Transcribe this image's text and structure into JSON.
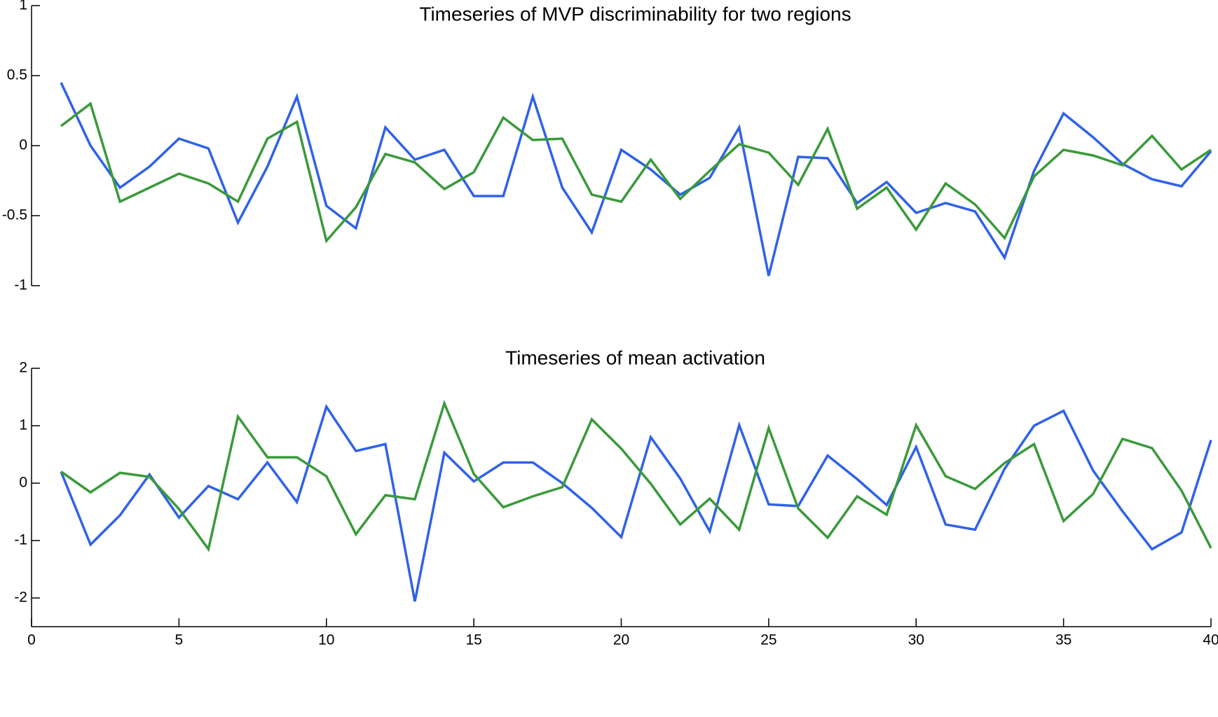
{
  "chart_data": [
    {
      "type": "line",
      "title": "Timeseries of MVP discriminability for two regions",
      "x": [
        1,
        2,
        3,
        4,
        5,
        6,
        7,
        8,
        9,
        10,
        11,
        12,
        13,
        14,
        15,
        16,
        17,
        18,
        19,
        20,
        21,
        22,
        23,
        24,
        25,
        26,
        27,
        28,
        29,
        30,
        31,
        32,
        33,
        34,
        35,
        36,
        37,
        38,
        39,
        40
      ],
      "series": [
        {
          "color": "#2f62e8",
          "values": [
            0.45,
            0.0,
            -0.3,
            -0.15,
            0.05,
            -0.02,
            -0.55,
            -0.15,
            0.35,
            -0.43,
            -0.59,
            0.13,
            -0.1,
            -0.03,
            -0.36,
            -0.36,
            0.35,
            -0.3,
            -0.62,
            -0.03,
            -0.17,
            -0.35,
            -0.23,
            0.13,
            -0.93,
            -0.08,
            -0.09,
            -0.41,
            -0.26,
            -0.48,
            -0.41,
            -0.47,
            -0.8,
            -0.18,
            0.23,
            0.06,
            -0.13,
            -0.24,
            -0.29,
            -0.04
          ]
        },
        {
          "color": "#3a9a3a",
          "values": [
            0.14,
            0.3,
            -0.4,
            -0.3,
            -0.2,
            -0.27,
            -0.4,
            0.05,
            0.17,
            -0.68,
            -0.44,
            -0.06,
            -0.12,
            -0.31,
            -0.19,
            0.2,
            0.04,
            0.05,
            -0.35,
            -0.4,
            -0.1,
            -0.38,
            -0.18,
            0.01,
            -0.05,
            -0.28,
            0.12,
            -0.45,
            -0.3,
            -0.6,
            -0.27,
            -0.42,
            -0.66,
            -0.22,
            -0.03,
            -0.07,
            -0.14,
            0.07,
            -0.17,
            -0.03
          ]
        }
      ],
      "xlim": [
        0,
        40
      ],
      "ylim": [
        -1,
        1
      ],
      "yticks": [
        -1,
        -0.5,
        0,
        0.5,
        1
      ]
    },
    {
      "type": "line",
      "title": "Timeseries of mean activation",
      "x": [
        1,
        2,
        3,
        4,
        5,
        6,
        7,
        8,
        9,
        10,
        11,
        12,
        13,
        14,
        15,
        16,
        17,
        18,
        19,
        20,
        21,
        22,
        23,
        24,
        25,
        26,
        27,
        28,
        29,
        30,
        31,
        32,
        33,
        34,
        35,
        36,
        37,
        38,
        39,
        40
      ],
      "series": [
        {
          "color": "#2f62e8",
          "values": [
            0.2,
            -1.07,
            -0.56,
            0.15,
            -0.6,
            -0.05,
            -0.28,
            0.36,
            -0.33,
            1.33,
            0.56,
            0.68,
            -2.06,
            0.53,
            0.03,
            0.36,
            0.36,
            0.0,
            -0.43,
            -0.94,
            0.8,
            0.08,
            -0.84,
            1.01,
            -0.37,
            -0.4,
            0.48,
            0.07,
            -0.38,
            0.63,
            -0.72,
            -0.81,
            0.25,
            1.0,
            1.26,
            0.22,
            -0.49,
            -1.15,
            -0.86,
            0.75
          ]
        },
        {
          "color": "#3a9a3a",
          "values": [
            0.2,
            -0.16,
            0.18,
            0.11,
            -0.45,
            -1.15,
            1.16,
            0.45,
            0.45,
            0.12,
            -0.89,
            -0.21,
            -0.28,
            1.39,
            0.16,
            -0.42,
            -0.23,
            -0.07,
            1.11,
            0.6,
            -0.01,
            -0.72,
            -0.27,
            -0.81,
            0.96,
            -0.44,
            -0.95,
            -0.23,
            -0.55,
            1.01,
            0.12,
            -0.1,
            0.35,
            0.68,
            -0.66,
            -0.19,
            0.77,
            0.61,
            -0.13,
            -1.13
          ]
        }
      ],
      "xlim": [
        0,
        40
      ],
      "ylim": [
        -2.5,
        2
      ],
      "yticks": [
        -2,
        -1,
        0,
        1,
        2
      ],
      "xticks": [
        0,
        5,
        10,
        15,
        20,
        25,
        30,
        35,
        40
      ]
    }
  ]
}
